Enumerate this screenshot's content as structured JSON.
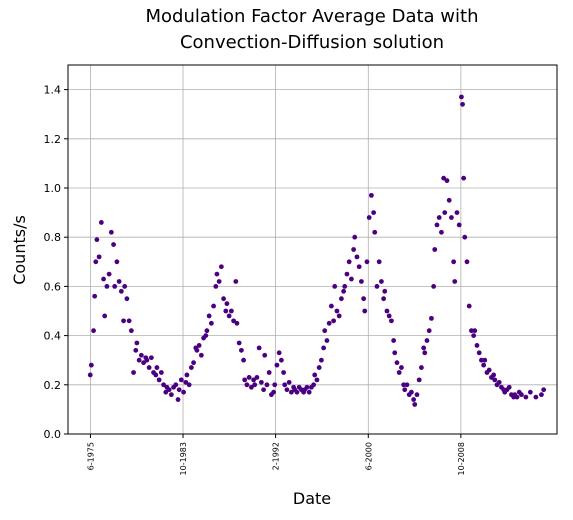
{
  "chart_data": {
    "type": "scatter",
    "title": "Modulation Factor Average Data with\nConvection-Diffusion solution",
    "xlabel": "Date",
    "ylabel": "Counts/s",
    "color": "#4b0082",
    "grid": true,
    "xlim": [
      1973.4,
      2017.4
    ],
    "ylim": [
      0,
      1.5
    ],
    "xticks": [
      {
        "value": 1975.42,
        "label": "6-1975"
      },
      {
        "value": 1983.75,
        "label": "10-1983"
      },
      {
        "value": 1992.08,
        "label": "2-1992"
      },
      {
        "value": 2000.42,
        "label": "6-2000"
      },
      {
        "value": 2008.75,
        "label": "10-2008"
      }
    ],
    "yticks": [
      {
        "value": 0,
        "label": "0.0"
      },
      0.2,
      0.4,
      0.6,
      0.8,
      {
        "value": 1,
        "label": "1.0"
      },
      1.2,
      1.4
    ],
    "x": [
      1975.4,
      1975.5,
      1975.7,
      1975.8,
      1975.9,
      1976.0,
      1976.2,
      1976.4,
      1976.6,
      1976.7,
      1976.9,
      1977.1,
      1977.3,
      1977.5,
      1977.6,
      1977.8,
      1978.0,
      1978.2,
      1978.4,
      1978.5,
      1978.7,
      1978.9,
      1979.1,
      1979.3,
      1979.5,
      1979.6,
      1979.8,
      1980.0,
      1980.2,
      1980.4,
      1980.5,
      1980.7,
      1980.9,
      1981.1,
      1981.3,
      1981.4,
      1981.6,
      1981.8,
      1982.0,
      1982.2,
      1982.3,
      1982.5,
      1982.7,
      1982.9,
      1983.1,
      1983.3,
      1983.4,
      1983.6,
      1983.8,
      1984.0,
      1984.1,
      1984.3,
      1984.5,
      1984.7,
      1984.9,
      1985.0,
      1985.2,
      1985.4,
      1985.6,
      1985.8,
      1985.9,
      1986.1,
      1986.3,
      1986.5,
      1986.7,
      1986.8,
      1987.0,
      1987.2,
      1987.4,
      1987.6,
      1987.7,
      1987.9,
      1988.1,
      1988.3,
      1988.5,
      1988.6,
      1988.8,
      1989.0,
      1989.2,
      1989.3,
      1989.5,
      1989.7,
      1989.9,
      1990.1,
      1990.2,
      1990.4,
      1990.6,
      1990.8,
      1991.0,
      1991.1,
      1991.3,
      1991.5,
      1991.7,
      1991.9,
      1992.0,
      1992.2,
      1992.4,
      1992.6,
      1992.8,
      1992.9,
      1993.1,
      1993.3,
      1993.5,
      1993.7,
      1993.8,
      1994.0,
      1994.2,
      1994.4,
      1994.6,
      1994.7,
      1994.9,
      1995.1,
      1995.3,
      1995.5,
      1995.6,
      1995.8,
      1996.0,
      1996.2,
      1996.4,
      1996.5,
      1996.7,
      1996.9,
      1997.1,
      1997.3,
      1997.4,
      1997.6,
      1997.8,
      1998.0,
      1998.2,
      1998.3,
      1998.5,
      1998.7,
      1998.9,
      1999.1,
      1999.2,
      1999.4,
      1999.6,
      1999.8,
      2000.0,
      2000.1,
      2000.3,
      2000.5,
      2000.7,
      2000.9,
      2001.0,
      2001.2,
      2001.4,
      2001.6,
      2001.8,
      2001.9,
      2002.1,
      2002.3,
      2002.5,
      2002.7,
      2002.8,
      2003.0,
      2003.2,
      2003.4,
      2003.6,
      2003.7,
      2003.9,
      2004.1,
      2004.3,
      2004.5,
      2004.6,
      2004.8,
      2005.0,
      2005.2,
      2005.4,
      2005.5,
      2005.7,
      2005.9,
      2006.1,
      2006.3,
      2006.4,
      2006.6,
      2006.8,
      2007.0,
      2007.2,
      2007.3,
      2007.5,
      2007.7,
      2007.9,
      2008.1,
      2008.2,
      2008.4,
      2008.6,
      2008.8,
      2008.9,
      2009.0,
      2009.1,
      2009.3,
      2009.5,
      2009.7,
      2009.9,
      2010.0,
      2010.2,
      2010.4,
      2010.6,
      2010.8,
      2010.9,
      2011.1,
      2011.3,
      2011.5,
      2011.7,
      2011.8,
      2012.0,
      2012.2,
      2012.4,
      2012.6,
      2012.7,
      2012.9,
      2013.1,
      2013.3,
      2013.5,
      2013.6,
      2013.8,
      2014.0,
      2014.2,
      2014.6,
      2015.0,
      2015.5,
      2016.0,
      2016.2
    ],
    "values": [
      0.24,
      0.28,
      0.42,
      0.56,
      0.7,
      0.79,
      0.72,
      0.86,
      0.63,
      0.48,
      0.6,
      0.65,
      0.82,
      0.77,
      0.6,
      0.7,
      0.62,
      0.58,
      0.46,
      0.6,
      0.55,
      0.46,
      0.42,
      0.25,
      0.34,
      0.37,
      0.3,
      0.32,
      0.29,
      0.31,
      0.3,
      0.27,
      0.31,
      0.25,
      0.24,
      0.27,
      0.22,
      0.25,
      0.2,
      0.17,
      0.19,
      0.18,
      0.16,
      0.19,
      0.2,
      0.14,
      0.18,
      0.22,
      0.17,
      0.21,
      0.24,
      0.2,
      0.27,
      0.29,
      0.35,
      0.34,
      0.36,
      0.32,
      0.39,
      0.4,
      0.42,
      0.48,
      0.45,
      0.52,
      0.6,
      0.65,
      0.62,
      0.68,
      0.55,
      0.5,
      0.53,
      0.48,
      0.5,
      0.46,
      0.62,
      0.45,
      0.37,
      0.34,
      0.3,
      0.22,
      0.2,
      0.23,
      0.19,
      0.22,
      0.2,
      0.23,
      0.35,
      0.21,
      0.18,
      0.32,
      0.2,
      0.25,
      0.16,
      0.17,
      0.2,
      0.28,
      0.33,
      0.3,
      0.25,
      0.2,
      0.18,
      0.21,
      0.17,
      0.19,
      0.18,
      0.17,
      0.19,
      0.18,
      0.17,
      0.18,
      0.19,
      0.17,
      0.19,
      0.2,
      0.24,
      0.22,
      0.27,
      0.3,
      0.35,
      0.42,
      0.38,
      0.45,
      0.52,
      0.46,
      0.6,
      0.5,
      0.48,
      0.55,
      0.58,
      0.6,
      0.65,
      0.7,
      0.63,
      0.75,
      0.8,
      0.72,
      0.68,
      0.62,
      0.55,
      0.5,
      0.7,
      0.88,
      0.97,
      0.9,
      0.82,
      0.6,
      0.7,
      0.62,
      0.55,
      0.58,
      0.5,
      0.48,
      0.46,
      0.38,
      0.33,
      0.29,
      0.25,
      0.27,
      0.2,
      0.18,
      0.2,
      0.16,
      0.17,
      0.14,
      0.12,
      0.16,
      0.22,
      0.27,
      0.35,
      0.33,
      0.38,
      0.42,
      0.47,
      0.6,
      0.75,
      0.85,
      0.88,
      0.82,
      1.04,
      0.9,
      1.03,
      0.95,
      0.88,
      0.7,
      0.62,
      0.9,
      0.85,
      1.37,
      1.34,
      1.04,
      0.8,
      0.7,
      0.52,
      0.42,
      0.4,
      0.42,
      0.36,
      0.33,
      0.3,
      0.28,
      0.3,
      0.25,
      0.26,
      0.23,
      0.24,
      0.22,
      0.2,
      0.21,
      0.19,
      0.18,
      0.17,
      0.18,
      0.19,
      0.16,
      0.15,
      0.16,
      0.15,
      0.17,
      0.16,
      0.15,
      0.17,
      0.15,
      0.16,
      0.18
    ]
  }
}
